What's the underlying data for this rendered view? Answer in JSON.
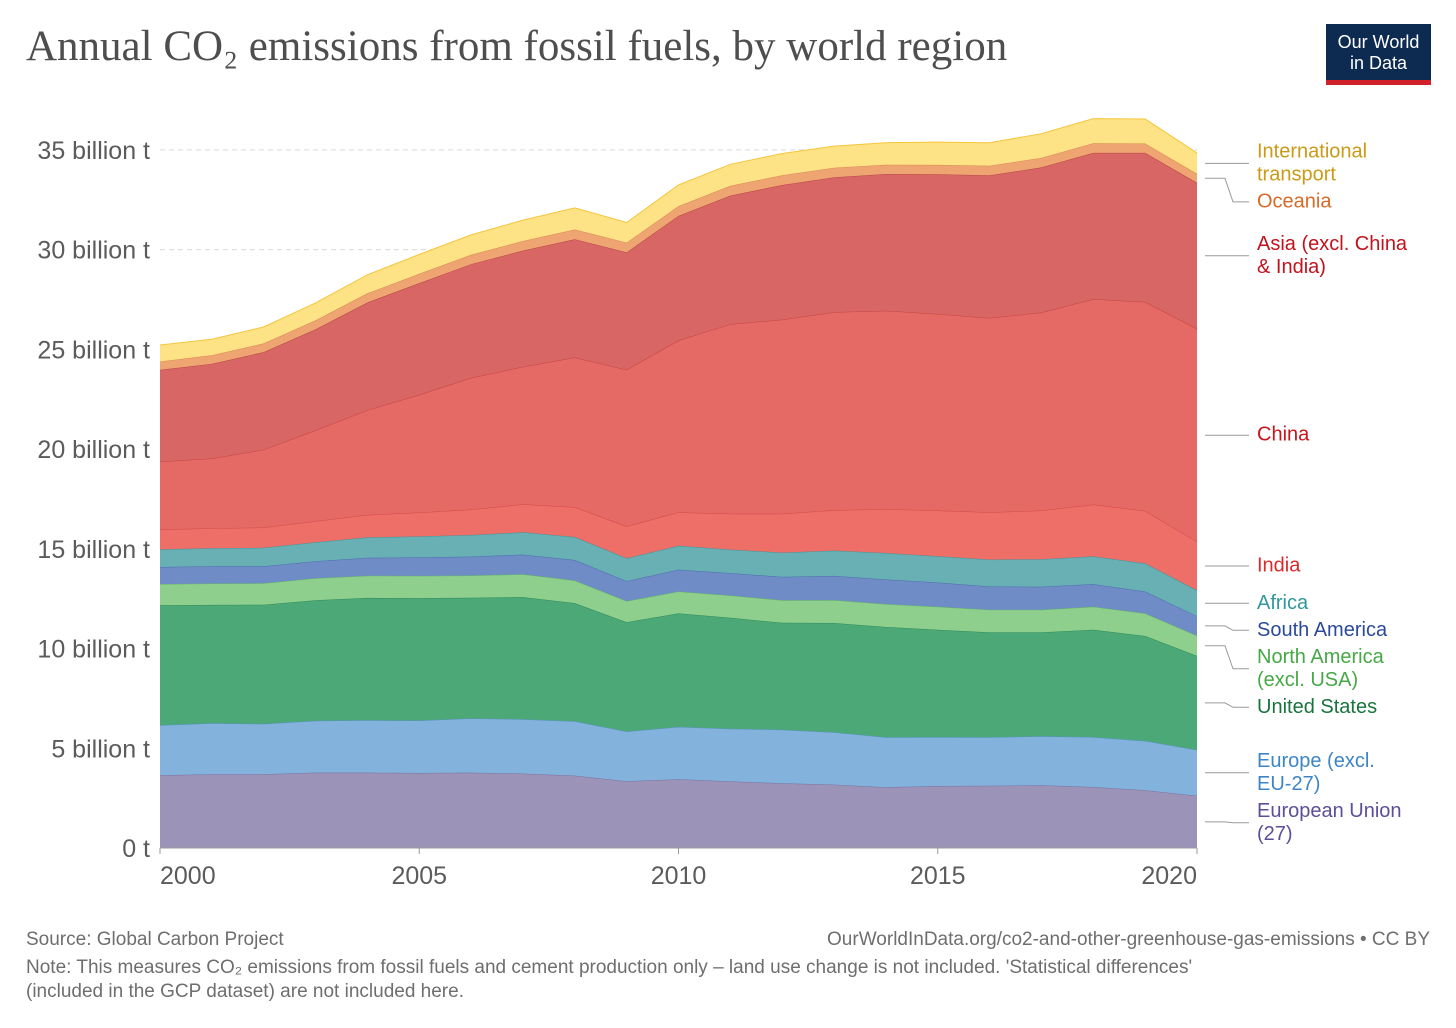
{
  "title": "Annual CO₂ emissions from fossil fuels, by world region",
  "logo": {
    "line1": "Our World",
    "line2": "in Data"
  },
  "footer": {
    "source": "Source: Global Carbon Project",
    "url": "OurWorldInData.org/co2-and-other-greenhouse-gas-emissions • CC BY",
    "note_line1": "Note: This measures CO₂ emissions from fossil fuels and cement production only – land use change is not included. 'Statistical differences'",
    "note_line2": "(included in the GCP dataset) are not included here."
  },
  "chart_data": {
    "type": "area",
    "stacked": true,
    "x": [
      2000,
      2001,
      2002,
      2003,
      2004,
      2005,
      2006,
      2007,
      2008,
      2009,
      2010,
      2011,
      2012,
      2013,
      2014,
      2015,
      2016,
      2017,
      2018,
      2019,
      2020
    ],
    "ylim": [
      0,
      37
    ],
    "xlim": [
      2000,
      2020
    ],
    "yticks": [
      {
        "value": 0,
        "label": "0 t"
      },
      {
        "value": 5,
        "label": "5 billion t"
      },
      {
        "value": 10,
        "label": "10 billion t"
      },
      {
        "value": 15,
        "label": "15 billion t"
      },
      {
        "value": 20,
        "label": "20 billion t"
      },
      {
        "value": 25,
        "label": "25 billion t"
      },
      {
        "value": 30,
        "label": "30 billion t"
      },
      {
        "value": 35,
        "label": "35 billion t"
      }
    ],
    "xticks": [
      2000,
      2005,
      2010,
      2015,
      2020
    ],
    "grid": "horizontal-dashed",
    "legend": "right",
    "series": [
      {
        "name": "European Union (27)",
        "label_lines": [
          "European Union",
          "(27)"
        ],
        "color": "#9b93b8",
        "line": "#7b72a0",
        "text_color": "#5c4f9a",
        "values": [
          3.65,
          3.7,
          3.7,
          3.78,
          3.78,
          3.76,
          3.78,
          3.73,
          3.63,
          3.35,
          3.45,
          3.34,
          3.25,
          3.18,
          3.05,
          3.11,
          3.12,
          3.15,
          3.06,
          2.9,
          2.62
        ]
      },
      {
        "name": "Europe (excl. EU-27)",
        "label_lines": [
          "Europe (excl.",
          "EU-27)"
        ],
        "color": "#83b3dc",
        "line": "#5b93c4",
        "text_color": "#3d85c6",
        "values": [
          2.5,
          2.55,
          2.52,
          2.6,
          2.62,
          2.63,
          2.72,
          2.72,
          2.72,
          2.49,
          2.62,
          2.64,
          2.68,
          2.62,
          2.5,
          2.45,
          2.43,
          2.45,
          2.5,
          2.47,
          2.3
        ]
      },
      {
        "name": "United States",
        "label_lines": [
          "United States"
        ],
        "color": "#4ca876",
        "line": "#2f8b5a",
        "text_color": "#19743c",
        "values": [
          6.02,
          5.94,
          5.98,
          6.04,
          6.14,
          6.14,
          6.05,
          6.13,
          5.93,
          5.48,
          5.69,
          5.56,
          5.36,
          5.48,
          5.53,
          5.38,
          5.26,
          5.21,
          5.38,
          5.26,
          4.71
        ]
      },
      {
        "name": "North America (excl. USA)",
        "label_lines": [
          "North America",
          "(excl. USA)"
        ],
        "color": "#8ecf8e",
        "line": "#66b866",
        "text_color": "#46a846",
        "values": [
          1.06,
          1.07,
          1.07,
          1.1,
          1.11,
          1.11,
          1.11,
          1.14,
          1.13,
          1.06,
          1.1,
          1.12,
          1.13,
          1.15,
          1.15,
          1.16,
          1.13,
          1.13,
          1.16,
          1.13,
          1.02
        ]
      },
      {
        "name": "South America",
        "label_lines": [
          "South America"
        ],
        "color": "#6f8cc6",
        "line": "#4d6cb0",
        "text_color": "#2b4a9a",
        "values": [
          0.86,
          0.87,
          0.86,
          0.86,
          0.9,
          0.93,
          0.95,
          0.99,
          1.03,
          1.0,
          1.09,
          1.12,
          1.17,
          1.21,
          1.23,
          1.21,
          1.17,
          1.16,
          1.13,
          1.1,
          0.97
        ]
      },
      {
        "name": "Africa",
        "label_lines": [
          "Africa"
        ],
        "color": "#68b0b4",
        "line": "#459498",
        "text_color": "#30979c",
        "values": [
          0.88,
          0.9,
          0.92,
          0.95,
          1.02,
          1.05,
          1.08,
          1.12,
          1.15,
          1.15,
          1.2,
          1.18,
          1.22,
          1.27,
          1.33,
          1.32,
          1.35,
          1.38,
          1.39,
          1.41,
          1.3
        ]
      },
      {
        "name": "India",
        "label_lines": [
          "India"
        ],
        "color": "#ee6e68",
        "line": "#d34b45",
        "text_color": "#dc2a2a",
        "values": [
          1.0,
          1.0,
          1.02,
          1.06,
          1.13,
          1.2,
          1.28,
          1.4,
          1.5,
          1.6,
          1.68,
          1.8,
          1.95,
          2.03,
          2.2,
          2.29,
          2.37,
          2.44,
          2.6,
          2.63,
          2.44
        ]
      },
      {
        "name": "China",
        "label_lines": [
          "China"
        ],
        "color": "#e56a66",
        "line": "#c44540",
        "text_color": "#c8151c",
        "values": [
          3.4,
          3.5,
          3.9,
          4.55,
          5.25,
          5.9,
          6.6,
          6.9,
          7.5,
          7.85,
          8.62,
          9.5,
          9.73,
          9.93,
          9.95,
          9.85,
          9.74,
          9.93,
          10.3,
          10.48,
          10.67
        ]
      },
      {
        "name": "Asia (excl. China & India)",
        "label_lines": [
          "Asia (excl. China",
          "& India)"
        ],
        "color": "#d86665",
        "line": "#b64546",
        "text_color": "#c2121c",
        "values": [
          4.6,
          4.74,
          4.89,
          5.06,
          5.4,
          5.6,
          5.7,
          5.82,
          5.93,
          5.88,
          6.24,
          6.45,
          6.75,
          6.75,
          6.85,
          7.01,
          7.15,
          7.27,
          7.33,
          7.47,
          7.32
        ]
      },
      {
        "name": "Oceania",
        "label_lines": [
          "Oceania"
        ],
        "color": "#eea572",
        "line": "#d98a53",
        "text_color": "#d86a28",
        "values": [
          0.42,
          0.43,
          0.44,
          0.45,
          0.46,
          0.47,
          0.47,
          0.48,
          0.49,
          0.49,
          0.49,
          0.49,
          0.49,
          0.48,
          0.47,
          0.47,
          0.48,
          0.48,
          0.48,
          0.47,
          0.45
        ]
      },
      {
        "name": "International transport",
        "label_lines": [
          "International",
          "transport"
        ],
        "color": "#fde286",
        "line": "#f4c63c",
        "text_color": "#c99b16",
        "values": [
          0.83,
          0.81,
          0.82,
          0.88,
          0.93,
          0.97,
          1.0,
          1.05,
          1.08,
          1.01,
          1.06,
          1.08,
          1.09,
          1.09,
          1.1,
          1.14,
          1.16,
          1.21,
          1.24,
          1.23,
          1.05
        ]
      }
    ]
  }
}
